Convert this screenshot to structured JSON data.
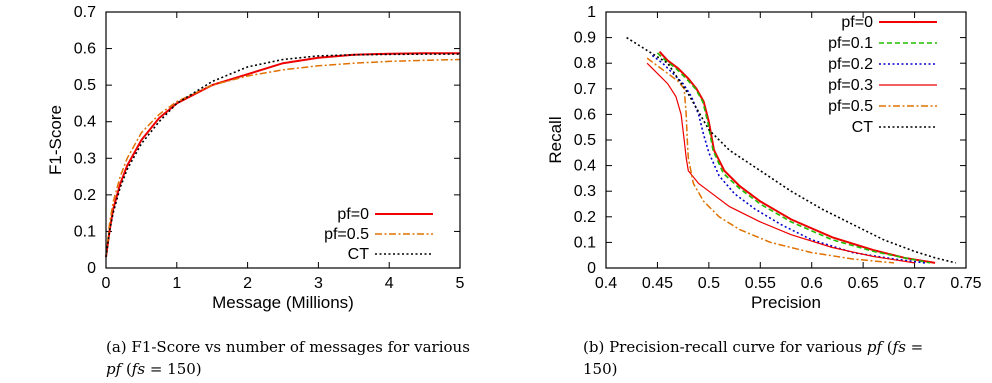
{
  "chart_data": [
    {
      "type": "line",
      "xlabel": "Message (Millions)",
      "ylabel": "F1-Score",
      "xlim": [
        0,
        5
      ],
      "ylim": [
        0,
        0.7
      ],
      "xticks": [
        "0",
        "1",
        "2",
        "3",
        "4",
        "5"
      ],
      "yticks": [
        "0",
        "0.1",
        "0.2",
        "0.3",
        "0.4",
        "0.5",
        "0.6",
        "0.7"
      ],
      "legend_position": "bottom-right",
      "series": [
        {
          "name": "pf=0",
          "color": "#ee0000",
          "style": "solid",
          "x": [
            0,
            0.05,
            0.1,
            0.2,
            0.3,
            0.5,
            0.75,
            1.0,
            1.5,
            2.0,
            2.5,
            3.0,
            3.5,
            4.0,
            4.5,
            5.0
          ],
          "y": [
            0.03,
            0.1,
            0.16,
            0.23,
            0.28,
            0.35,
            0.41,
            0.45,
            0.5,
            0.53,
            0.56,
            0.575,
            0.583,
            0.586,
            0.587,
            0.587
          ]
        },
        {
          "name": "pf=0.5",
          "color": "#e07000",
          "style": "dashdot",
          "x": [
            0,
            0.05,
            0.1,
            0.2,
            0.3,
            0.5,
            0.75,
            1.0,
            1.5,
            2.0,
            2.5,
            3.0,
            3.5,
            4.0,
            4.5,
            5.0
          ],
          "y": [
            0.03,
            0.12,
            0.18,
            0.25,
            0.3,
            0.37,
            0.42,
            0.455,
            0.5,
            0.525,
            0.542,
            0.553,
            0.56,
            0.565,
            0.568,
            0.57
          ]
        },
        {
          "name": "CT",
          "color": "#000000",
          "style": "dotted",
          "x": [
            0,
            0.05,
            0.1,
            0.2,
            0.3,
            0.5,
            0.75,
            1.0,
            1.5,
            2.0,
            2.5,
            3.0,
            3.5,
            4.0,
            4.5,
            5.0
          ],
          "y": [
            0.03,
            0.1,
            0.15,
            0.22,
            0.27,
            0.34,
            0.4,
            0.45,
            0.51,
            0.55,
            0.57,
            0.58,
            0.583,
            0.584,
            0.585,
            0.585
          ]
        }
      ]
    },
    {
      "type": "line",
      "xlabel": "Precision",
      "ylabel": "Recall",
      "xlim": [
        0.4,
        0.75
      ],
      "ylim": [
        0,
        1
      ],
      "xticks": [
        "0.4",
        "0.45",
        "0.5",
        "0.55",
        "0.6",
        "0.65",
        "0.7",
        "0.75"
      ],
      "yticks": [
        "0",
        "0.1",
        "0.2",
        "0.3",
        "0.4",
        "0.5",
        "0.6",
        "0.7",
        "0.8",
        "0.9",
        "1"
      ],
      "legend_position": "top-right",
      "series": [
        {
          "name": "pf=0",
          "color": "#ee0000",
          "style": "solid",
          "x": [
            0.452,
            0.46,
            0.47,
            0.48,
            0.488,
            0.495,
            0.5,
            0.505,
            0.515,
            0.53,
            0.55,
            0.58,
            0.62,
            0.66,
            0.69,
            0.72
          ],
          "y": [
            0.845,
            0.81,
            0.78,
            0.74,
            0.7,
            0.65,
            0.57,
            0.46,
            0.38,
            0.32,
            0.26,
            0.19,
            0.12,
            0.07,
            0.04,
            0.02
          ]
        },
        {
          "name": "pf=0.1",
          "color": "#22bb00",
          "style": "dashed",
          "x": [
            0.45,
            0.458,
            0.468,
            0.478,
            0.487,
            0.494,
            0.499,
            0.504,
            0.514,
            0.53,
            0.55,
            0.58,
            0.62,
            0.66,
            0.69,
            0.715
          ],
          "y": [
            0.84,
            0.81,
            0.78,
            0.74,
            0.7,
            0.65,
            0.57,
            0.46,
            0.37,
            0.31,
            0.25,
            0.18,
            0.11,
            0.065,
            0.04,
            0.02
          ]
        },
        {
          "name": "pf=0.2",
          "color": "#0000cc",
          "style": "dotted",
          "x": [
            0.445,
            0.455,
            0.465,
            0.475,
            0.483,
            0.49,
            0.495,
            0.5,
            0.51,
            0.525,
            0.545,
            0.57,
            0.6,
            0.64,
            0.68,
            0.71
          ],
          "y": [
            0.83,
            0.8,
            0.76,
            0.72,
            0.67,
            0.6,
            0.52,
            0.45,
            0.36,
            0.29,
            0.23,
            0.17,
            0.11,
            0.06,
            0.035,
            0.02
          ]
        },
        {
          "name": "pf=0.3",
          "color": "#ee0000",
          "style": "thin",
          "x": [
            0.44,
            0.45,
            0.46,
            0.468,
            0.473,
            0.476,
            0.478,
            0.48,
            0.49,
            0.5,
            0.52,
            0.55,
            0.58,
            0.62,
            0.66,
            0.7
          ],
          "y": [
            0.8,
            0.76,
            0.72,
            0.67,
            0.6,
            0.5,
            0.43,
            0.38,
            0.33,
            0.3,
            0.24,
            0.18,
            0.13,
            0.08,
            0.045,
            0.02
          ]
        },
        {
          "name": "pf=0.5",
          "color": "#e07000",
          "style": "dashdot",
          "x": [
            0.44,
            0.45,
            0.46,
            0.47,
            0.476,
            0.478,
            0.479,
            0.48,
            0.485,
            0.495,
            0.51,
            0.53,
            0.56,
            0.6,
            0.64,
            0.68
          ],
          "y": [
            0.82,
            0.79,
            0.76,
            0.73,
            0.7,
            0.6,
            0.5,
            0.43,
            0.33,
            0.26,
            0.2,
            0.15,
            0.1,
            0.06,
            0.035,
            0.02
          ]
        },
        {
          "name": "CT",
          "color": "#000000",
          "style": "dotted",
          "x": [
            0.42,
            0.44,
            0.46,
            0.48,
            0.5,
            0.52,
            0.55,
            0.58,
            0.61,
            0.64,
            0.67,
            0.7,
            0.72,
            0.74
          ],
          "y": [
            0.9,
            0.85,
            0.8,
            0.68,
            0.54,
            0.46,
            0.38,
            0.3,
            0.23,
            0.17,
            0.11,
            0.065,
            0.04,
            0.02
          ]
        }
      ]
    }
  ],
  "captions": {
    "a": {
      "line1_prefix": "(a) F1-Score vs number of messages for various",
      "line2_var": "pf",
      "line2_mid": "(",
      "line2_math": "fs",
      "line2_end": " = 150)"
    },
    "b": {
      "line1_prefix": "(b) Precision-recall curve for various",
      "line1_var": "pf",
      "line1_mid": "(",
      "line1_math": "fs",
      "line1_end": " =",
      "line2": "150)"
    }
  }
}
